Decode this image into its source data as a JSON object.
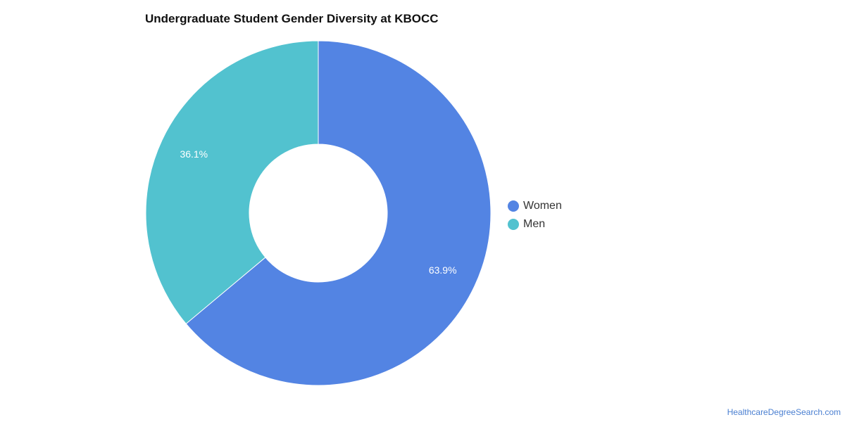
{
  "chart_data": {
    "type": "pie",
    "title": "Undergraduate Student Gender Diversity at KBOCC",
    "categories": [
      "Women",
      "Men"
    ],
    "values": [
      63.9,
      36.1
    ],
    "labels": [
      "63.9%",
      "36.1%"
    ],
    "colors": [
      "#5384e3",
      "#52c2cf"
    ],
    "donut": true,
    "legend_position": "right"
  },
  "legend": {
    "items": [
      {
        "label": "Women",
        "color": "#5384e3"
      },
      {
        "label": "Men",
        "color": "#52c2cf"
      }
    ]
  },
  "footer": {
    "source": "HealthcareDegreeSearch.com"
  }
}
